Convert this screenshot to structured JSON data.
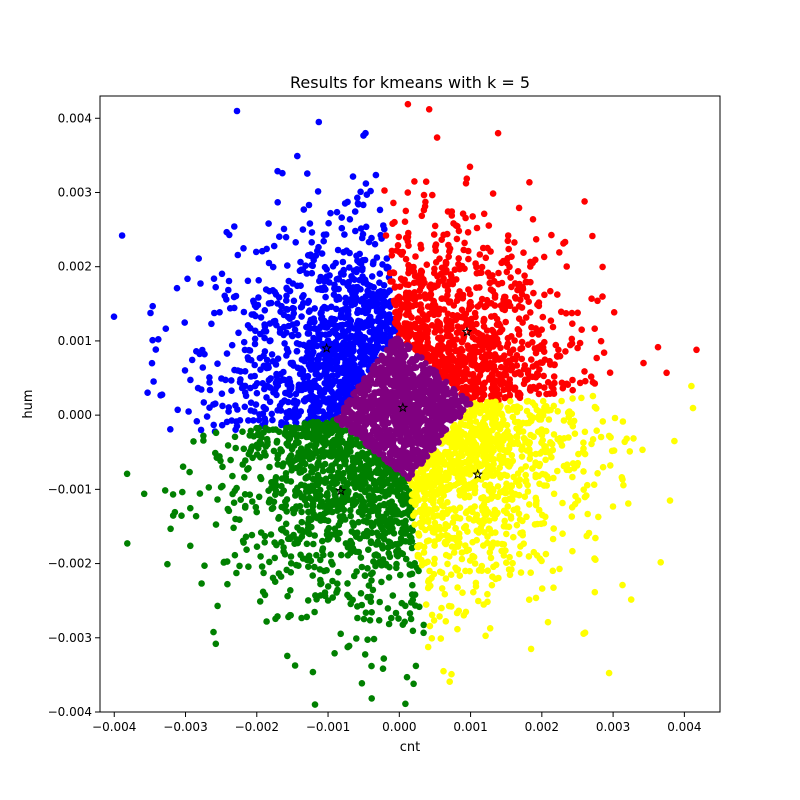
{
  "chart_data": {
    "type": "scatter",
    "title": "Results for kmeans with k = 5",
    "xlabel": "cnt",
    "ylabel": "hum",
    "xlim": [
      -0.0042,
      0.0045
    ],
    "ylim": [
      -0.004,
      0.0043
    ],
    "xticks": [
      -0.004,
      -0.003,
      -0.002,
      -0.001,
      0.0,
      0.001,
      0.002,
      0.003,
      0.004
    ],
    "xtick_labels": [
      "−0.004",
      "−0.003",
      "−0.002",
      "−0.001",
      "0.000",
      "0.001",
      "0.002",
      "0.003",
      "0.004"
    ],
    "yticks": [
      -0.004,
      -0.003,
      -0.002,
      -0.001,
      0.0,
      0.001,
      0.002,
      0.003,
      0.004
    ],
    "ytick_labels": [
      "−0.004",
      "−0.003",
      "−0.002",
      "−0.001",
      "0.000",
      "0.001",
      "0.002",
      "0.003",
      "0.004"
    ],
    "grid": false,
    "clusters": [
      {
        "color": "#0000ff",
        "center": [
          -0.00102,
          0.0009
        ]
      },
      {
        "color": "#ff0000",
        "center": [
          0.00095,
          0.00112
        ]
      },
      {
        "color": "#800080",
        "center": [
          5e-05,
          0.0001
        ]
      },
      {
        "color": "#008000",
        "center": [
          -0.00082,
          -0.00102
        ]
      },
      {
        "color": "#ffff00",
        "center": [
          0.0011,
          -0.0008
        ]
      }
    ],
    "centroid_marker": "star",
    "outliers": [
      {
        "x": -0.00113,
        "y": 0.00395,
        "color": "#0000ff"
      },
      {
        "x": 0.00012,
        "y": 0.00419,
        "color": "#ff0000"
      },
      {
        "x": 0.00053,
        "y": 0.00374,
        "color": "#ff0000"
      },
      {
        "x": 0.00417,
        "y": 0.00088,
        "color": "#ff0000"
      },
      {
        "x": 0.00375,
        "y": 0.00057,
        "color": "#ff0000"
      },
      {
        "x": -0.00382,
        "y": -0.00079,
        "color": "#008000"
      },
      {
        "x": -0.00358,
        "y": -0.00106,
        "color": "#008000"
      },
      {
        "x": -0.00347,
        "y": 0.0007,
        "color": "#0000ff"
      },
      {
        "x": -0.00312,
        "y": 0.00171,
        "color": "#0000ff"
      },
      {
        "x": 0.00386,
        "y": -0.00035,
        "color": "#ffff00"
      },
      {
        "x": 0.0002,
        "y": -0.00362,
        "color": "#008000"
      },
      {
        "x": 0.00062,
        "y": -0.00345,
        "color": "#ffff00"
      },
      {
        "x": 0.00185,
        "y": -0.00315,
        "color": "#ffff00"
      },
      {
        "x": -0.00255,
        "y": -0.00257,
        "color": "#008000"
      },
      {
        "x": 0.0026,
        "y": 0.00288,
        "color": "#ff0000"
      },
      {
        "x": -0.00164,
        "y": 0.00326,
        "color": "#0000ff"
      }
    ]
  }
}
